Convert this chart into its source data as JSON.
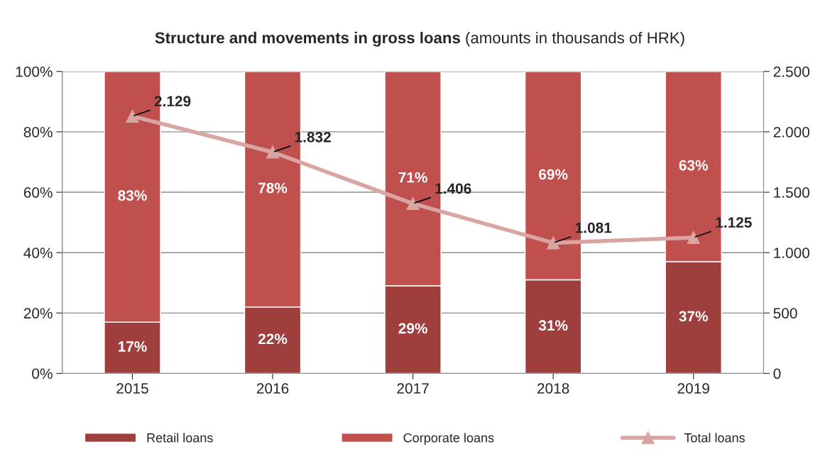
{
  "chart_data": {
    "type": "bar",
    "title": "Structure and movements in gross loans",
    "subtitle": "(amounts in thousands of HRK)",
    "categories": [
      "2015",
      "2016",
      "2017",
      "2018",
      "2019"
    ],
    "stacked": true,
    "series": [
      {
        "name": "Retail loans",
        "color": "#9e3f3d",
        "values": [
          17,
          22,
          29,
          31,
          37
        ],
        "value_labels": [
          "17%",
          "22%",
          "29%",
          "31%",
          "37%"
        ]
      },
      {
        "name": "Corporate loans",
        "color": "#c0504d",
        "values": [
          83,
          78,
          71,
          69,
          63
        ],
        "value_labels": [
          "83%",
          "78%",
          "71%",
          "69%",
          "63%"
        ]
      },
      {
        "name": "Total loans",
        "type": "line",
        "axis": "y2",
        "color": "#d9a5a3",
        "marker": "triangle",
        "values": [
          2129,
          1832,
          1406,
          1081,
          1125
        ],
        "value_labels": [
          "2.129",
          "1.832",
          "1.406",
          "1.081",
          "1.125"
        ]
      }
    ],
    "ylim": [
      0,
      100
    ],
    "yticks": [
      {
        "value": 0,
        "label": "0%"
      },
      {
        "value": 20,
        "label": "20%"
      },
      {
        "value": 40,
        "label": "40%"
      },
      {
        "value": 60,
        "label": "60%"
      },
      {
        "value": 80,
        "label": "80%"
      },
      {
        "value": 100,
        "label": "100%"
      }
    ],
    "y2lim": [
      0,
      2500
    ],
    "y2ticks": [
      0,
      {
        "value": 500,
        "label": "500"
      },
      {
        "value": 1000,
        "label": "1.000"
      },
      {
        "value": 1500,
        "label": "1.500"
      },
      {
        "value": 2000,
        "label": "2.000"
      },
      {
        "value": 2500,
        "label": "2.500"
      }
    ],
    "grid": "y",
    "legend": "bottom"
  }
}
